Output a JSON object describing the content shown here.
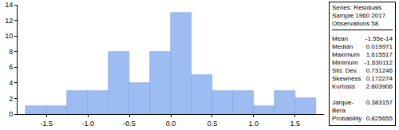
{
  "chart_data": {
    "type": "histogram",
    "bins": [
      -1.75,
      -1.5,
      -1.25,
      -1.0,
      -0.75,
      -0.5,
      -0.25,
      0.0,
      0.25,
      0.5,
      0.75,
      1.0,
      1.25,
      1.5,
      1.75
    ],
    "values": [
      1,
      1,
      3,
      3,
      8,
      4,
      8,
      13,
      5,
      3,
      3,
      1,
      3,
      2
    ],
    "color": "#9dbcf2",
    "xlim": [
      -1.85,
      1.85
    ],
    "xticks": [
      -1.5,
      {
        "value": -1.0,
        "label": "-1.0"
      },
      -0.5,
      {
        "value": 0.0,
        "label": "0.0"
      },
      0.5,
      {
        "value": 1.0,
        "label": "1.0"
      },
      1.5
    ],
    "ylim": [
      0,
      14
    ],
    "yticks": [
      0,
      2,
      4,
      6,
      8,
      10,
      12,
      14
    ],
    "grid": false
  },
  "stats_box": {
    "header": [
      "Series: Residuals",
      "Sample 1960 2017",
      "Observations 58"
    ],
    "groups": [
      [
        {
          "label": "Mean",
          "value": "-1.55e-14"
        },
        {
          "label": "Median",
          "value": "0.019971"
        },
        {
          "label": "Maximum",
          "value": "1.615517"
        },
        {
          "label": "Minimum",
          "value": "-1.630112"
        },
        {
          "label": "Std. Dev.",
          "value": "0.731246"
        },
        {
          "label": "Skewness",
          "value": "0.172274"
        },
        {
          "label": "Kurtosis",
          "value": "2.803906"
        }
      ],
      [
        {
          "label": "Jarque-Bera",
          "value": "0.383157"
        },
        {
          "label": "Probability",
          "value": "0.825655"
        }
      ]
    ]
  }
}
